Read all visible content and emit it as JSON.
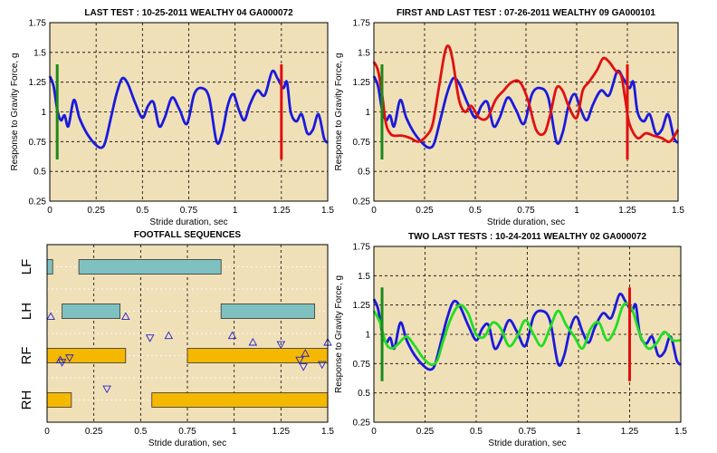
{
  "chart_data": [
    {
      "type": "line",
      "title": "LAST TEST : 10-25-2011 WEALTHY 04 GA000072",
      "xlabel": "Stride duration, sec",
      "ylabel": "Response to Gravity Force, g",
      "xlim": [
        0,
        1.5
      ],
      "ylim": [
        0.25,
        1.75
      ],
      "xticks": [
        "0",
        "0.25",
        "0.5",
        "0.75",
        "1",
        "1.25",
        "1.5"
      ],
      "yticks": [
        "0.25",
        "0.5",
        "0.75",
        "1",
        "1.25",
        "1.5",
        "1.75"
      ],
      "grid": true,
      "background": "#f0e0b8",
      "series": [
        {
          "color": "#1a1adc",
          "x": [
            0,
            0.02,
            0.04,
            0.06,
            0.08,
            0.1,
            0.13,
            0.16,
            0.2,
            0.25,
            0.28,
            0.3,
            0.33,
            0.36,
            0.39,
            0.42,
            0.46,
            0.5,
            0.53,
            0.56,
            0.59,
            0.62,
            0.66,
            0.7,
            0.74,
            0.78,
            0.82,
            0.86,
            0.9,
            0.93,
            0.96,
            0.99,
            1.02,
            1.05,
            1.08,
            1.12,
            1.16,
            1.2,
            1.23,
            1.26,
            1.28,
            1.3,
            1.33,
            1.36,
            1.39,
            1.42,
            1.45,
            1.48,
            1.5
          ],
          "y": [
            1.3,
            1.22,
            1.02,
            0.93,
            0.97,
            0.88,
            1.1,
            0.95,
            0.82,
            0.72,
            0.7,
            0.75,
            0.95,
            1.15,
            1.28,
            1.24,
            1.08,
            0.95,
            1.05,
            1.08,
            0.88,
            0.95,
            1.12,
            1.02,
            0.9,
            1.15,
            1.2,
            1.12,
            0.75,
            0.82,
            1.05,
            1.15,
            1.02,
            0.93,
            1.06,
            1.18,
            1.14,
            1.34,
            1.28,
            1.2,
            1.25,
            1.0,
            0.92,
            0.98,
            0.82,
            0.85,
            0.98,
            0.78,
            0.74
          ]
        },
        {
          "color": "#1a8a1a",
          "x": [
            0.04,
            0.04
          ],
          "y": [
            0.6,
            1.4
          ]
        },
        {
          "color": "#e01010",
          "x": [
            1.25,
            1.25
          ],
          "y": [
            0.6,
            1.4
          ]
        }
      ]
    },
    {
      "type": "line",
      "title": "FIRST AND LAST TEST : 07-26-2011 WEALTHY 09 GA000101",
      "xlabel": "Stride duration, sec",
      "ylabel": "Response to Gravity Force, g",
      "xlim": [
        0,
        1.5
      ],
      "ylim": [
        0.25,
        1.75
      ],
      "xticks": [
        "0",
        "0.25",
        "0.5",
        "0.75",
        "1",
        "1.25",
        "1.5"
      ],
      "yticks": [
        "0.25",
        "0.5",
        "0.75",
        "1",
        "1.25",
        "1.5",
        "1.75"
      ],
      "grid": true,
      "background": "#f0e0b8",
      "series": [
        {
          "color": "#1a1adc",
          "x": [
            0,
            0.02,
            0.04,
            0.06,
            0.08,
            0.1,
            0.13,
            0.16,
            0.2,
            0.25,
            0.28,
            0.3,
            0.33,
            0.36,
            0.39,
            0.42,
            0.46,
            0.5,
            0.53,
            0.56,
            0.59,
            0.62,
            0.66,
            0.7,
            0.74,
            0.78,
            0.82,
            0.86,
            0.9,
            0.93,
            0.96,
            0.99,
            1.02,
            1.05,
            1.08,
            1.12,
            1.16,
            1.2,
            1.23,
            1.26,
            1.28,
            1.3,
            1.33,
            1.36,
            1.39,
            1.42,
            1.45,
            1.48,
            1.5
          ],
          "y": [
            1.3,
            1.22,
            1.02,
            0.93,
            0.97,
            0.88,
            1.1,
            0.95,
            0.82,
            0.72,
            0.7,
            0.75,
            0.95,
            1.15,
            1.28,
            1.24,
            1.08,
            0.95,
            1.05,
            1.08,
            0.88,
            0.95,
            1.12,
            1.02,
            0.9,
            1.15,
            1.2,
            1.12,
            0.75,
            0.82,
            1.05,
            1.15,
            1.02,
            0.93,
            1.06,
            1.18,
            1.14,
            1.34,
            1.28,
            1.2,
            1.25,
            1.0,
            0.92,
            0.98,
            0.82,
            0.85,
            0.98,
            0.78,
            0.74
          ]
        },
        {
          "color": "#e01010",
          "x": [
            0,
            0.02,
            0.04,
            0.06,
            0.08,
            0.1,
            0.14,
            0.18,
            0.22,
            0.26,
            0.29,
            0.32,
            0.35,
            0.37,
            0.39,
            0.42,
            0.45,
            0.48,
            0.52,
            0.56,
            0.6,
            0.64,
            0.68,
            0.72,
            0.76,
            0.8,
            0.84,
            0.87,
            0.9,
            0.93,
            0.96,
            1.0,
            1.03,
            1.06,
            1.1,
            1.13,
            1.16,
            1.19,
            1.22,
            1.24,
            1.26,
            1.3,
            1.34,
            1.38,
            1.42,
            1.46,
            1.5
          ],
          "y": [
            1.42,
            1.35,
            1.15,
            0.9,
            0.82,
            0.8,
            0.8,
            0.78,
            0.75,
            0.8,
            0.9,
            1.2,
            1.5,
            1.55,
            1.42,
            1.1,
            1.0,
            1.05,
            0.95,
            0.95,
            1.1,
            1.18,
            1.25,
            1.25,
            1.1,
            0.85,
            0.82,
            0.98,
            1.2,
            1.18,
            1.05,
            0.95,
            1.18,
            1.25,
            1.35,
            1.45,
            1.42,
            1.35,
            1.3,
            1.1,
            0.9,
            0.78,
            0.82,
            0.8,
            0.78,
            0.75,
            0.85
          ]
        },
        {
          "color": "#1a8a1a",
          "x": [
            0.04,
            0.04
          ],
          "y": [
            0.6,
            1.4
          ]
        },
        {
          "color": "#e01010",
          "x": [
            1.25,
            1.25
          ],
          "y": [
            0.6,
            1.4
          ]
        }
      ]
    },
    {
      "type": "gantt",
      "title": "FOOTFALL SEQUENCES",
      "xlabel": "Stride duration, sec",
      "xlim": [
        0,
        1.5
      ],
      "xticks": [
        "0",
        "0.25",
        "0.5",
        "0.75",
        "1",
        "1.25",
        "1.5"
      ],
      "rows": [
        "LF",
        "LH",
        "RF",
        "RH"
      ],
      "grid": true,
      "background": "#f0e0b8",
      "bars": [
        {
          "row": "LF",
          "start": 0.0,
          "end": 0.03,
          "color": "#7fc1c1"
        },
        {
          "row": "LF",
          "start": 0.17,
          "end": 0.93,
          "color": "#7fc1c1"
        },
        {
          "row": "LH",
          "start": 0.08,
          "end": 0.39,
          "color": "#7fc1c1"
        },
        {
          "row": "LH",
          "start": 0.93,
          "end": 1.43,
          "color": "#7fc1c1"
        },
        {
          "row": "RF",
          "start": 0.0,
          "end": 0.42,
          "color": "#f5b800"
        },
        {
          "row": "RF",
          "start": 0.75,
          "end": 1.5,
          "color": "#f5b800"
        },
        {
          "row": "RH",
          "start": 0.0,
          "end": 0.13,
          "color": "#f5b800"
        },
        {
          "row": "RH",
          "start": 0.56,
          "end": 1.5,
          "color": "#f5b800"
        }
      ],
      "markers_up": [
        [
          0.02,
          2.12
        ],
        [
          0.42,
          2.12
        ],
        [
          0.65,
          2.55
        ],
        [
          0.99,
          2.55
        ],
        [
          1.1,
          2.7
        ],
        [
          1.38,
          2.95
        ],
        [
          1.5,
          2.7
        ],
        [
          0.07,
          3.1
        ]
      ],
      "markers_down": [
        [
          0.12,
          3.05
        ],
        [
          0.32,
          3.75
        ],
        [
          0.08,
          3.15
        ],
        [
          0.55,
          2.6
        ],
        [
          1.25,
          2.75
        ],
        [
          1.35,
          3.1
        ],
        [
          1.37,
          3.25
        ],
        [
          1.47,
          3.2
        ]
      ]
    },
    {
      "type": "line",
      "title": "TWO LAST TESTS : 10-24-2011 WEALTHY 02 GA000072",
      "xlabel": "Stride duration, sec",
      "ylabel": "Response to Gravity Force, g",
      "xlim": [
        0,
        1.5
      ],
      "ylim": [
        0.25,
        1.75
      ],
      "xticks": [
        "0",
        "0.25",
        "0.5",
        "0.75",
        "1",
        "1.25",
        "1.5"
      ],
      "yticks": [
        "0.25",
        "0.5",
        "0.75",
        "1",
        "1.25",
        "1.5",
        "1.75"
      ],
      "grid": true,
      "background": "#f0e0b8",
      "series": [
        {
          "color": "#1a1adc",
          "x": [
            0,
            0.02,
            0.04,
            0.06,
            0.08,
            0.1,
            0.13,
            0.16,
            0.2,
            0.25,
            0.28,
            0.3,
            0.33,
            0.36,
            0.39,
            0.42,
            0.46,
            0.5,
            0.53,
            0.56,
            0.59,
            0.62,
            0.66,
            0.7,
            0.74,
            0.78,
            0.82,
            0.86,
            0.9,
            0.93,
            0.96,
            0.99,
            1.02,
            1.05,
            1.08,
            1.12,
            1.16,
            1.2,
            1.23,
            1.26,
            1.28,
            1.3,
            1.33,
            1.36,
            1.39,
            1.42,
            1.45,
            1.48,
            1.5
          ],
          "y": [
            1.3,
            1.22,
            1.02,
            0.93,
            0.97,
            0.88,
            1.1,
            0.95,
            0.82,
            0.72,
            0.7,
            0.75,
            0.95,
            1.15,
            1.28,
            1.24,
            1.08,
            0.95,
            1.05,
            1.08,
            0.88,
            0.95,
            1.12,
            1.02,
            0.9,
            1.15,
            1.2,
            1.12,
            0.75,
            0.82,
            1.05,
            1.15,
            1.02,
            0.93,
            1.06,
            1.18,
            1.14,
            1.34,
            1.28,
            1.2,
            1.25,
            1.0,
            0.92,
            0.98,
            0.82,
            0.85,
            0.98,
            0.78,
            0.74
          ]
        },
        {
          "color": "#22dd22",
          "x": [
            0,
            0.03,
            0.06,
            0.09,
            0.12,
            0.16,
            0.2,
            0.24,
            0.28,
            0.31,
            0.34,
            0.38,
            0.42,
            0.46,
            0.5,
            0.54,
            0.58,
            0.62,
            0.66,
            0.7,
            0.74,
            0.78,
            0.82,
            0.86,
            0.9,
            0.94,
            0.98,
            1.02,
            1.06,
            1.1,
            1.14,
            1.18,
            1.22,
            1.26,
            1.3,
            1.34,
            1.38,
            1.42,
            1.46,
            1.5
          ],
          "y": [
            1.2,
            1.1,
            0.92,
            0.88,
            0.92,
            0.98,
            0.9,
            0.8,
            0.74,
            0.78,
            0.95,
            1.15,
            1.25,
            1.18,
            1.0,
            0.98,
            1.1,
            1.05,
            0.9,
            0.98,
            1.12,
            1.0,
            0.9,
            1.05,
            1.2,
            1.08,
            0.98,
            0.88,
            1.05,
            1.1,
            0.95,
            1.05,
            1.25,
            1.22,
            1.0,
            0.88,
            0.92,
            1.02,
            0.95,
            0.95
          ]
        },
        {
          "color": "#1a8a1a",
          "x": [
            0.04,
            0.04
          ],
          "y": [
            0.6,
            1.4
          ]
        },
        {
          "color": "#e01010",
          "x": [
            1.25,
            1.25
          ],
          "y": [
            0.6,
            1.4
          ]
        }
      ]
    }
  ]
}
